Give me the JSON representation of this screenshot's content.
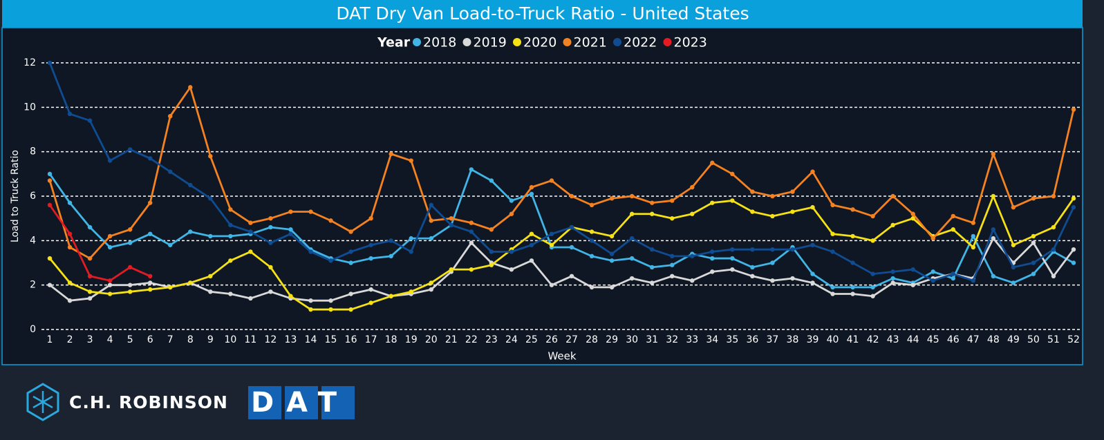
{
  "chart_data": {
    "type": "line",
    "title": "DAT Dry Van Load-to-Truck Ratio - United States",
    "legend_title": "Year",
    "x_label": "Week",
    "y_label": "Load to Truck Ratio",
    "x": [
      1,
      2,
      3,
      4,
      5,
      6,
      7,
      8,
      9,
      10,
      11,
      12,
      13,
      14,
      15,
      16,
      17,
      18,
      19,
      20,
      21,
      22,
      23,
      24,
      25,
      26,
      27,
      28,
      29,
      30,
      31,
      32,
      33,
      34,
      35,
      36,
      37,
      38,
      39,
      40,
      41,
      42,
      43,
      44,
      45,
      46,
      47,
      48,
      49,
      50,
      51,
      52
    ],
    "xlim": [
      1,
      52
    ],
    "ylim": [
      0,
      12
    ],
    "yticks": [
      0,
      2,
      4,
      6,
      8,
      10,
      12
    ],
    "grid": true,
    "legend": "top",
    "series": [
      {
        "name": "2018",
        "color": "#41b6e6",
        "values": [
          7.0,
          5.7,
          4.6,
          3.7,
          3.9,
          4.3,
          3.8,
          4.4,
          4.2,
          4.2,
          4.3,
          4.6,
          4.5,
          3.6,
          3.2,
          3.0,
          3.2,
          3.3,
          4.1,
          4.1,
          4.7,
          7.2,
          6.7,
          5.8,
          6.1,
          3.7,
          3.7,
          3.3,
          3.1,
          3.2,
          2.8,
          2.9,
          3.4,
          3.2,
          3.2,
          2.8,
          3.0,
          3.7,
          2.5,
          1.9,
          1.9,
          1.9,
          2.3,
          2.1,
          2.6,
          2.3,
          4.2,
          2.4,
          2.1,
          2.5,
          3.5,
          3.0
        ]
      },
      {
        "name": "2019",
        "color": "#d9d9d9",
        "values": [
          2.0,
          1.3,
          1.4,
          2.0,
          2.0,
          2.1,
          1.9,
          2.1,
          1.7,
          1.6,
          1.4,
          1.7,
          1.4,
          1.3,
          1.3,
          1.6,
          1.8,
          1.5,
          1.6,
          1.8,
          2.6,
          3.9,
          3.0,
          2.7,
          3.1,
          2.0,
          2.4,
          1.9,
          1.9,
          2.3,
          2.1,
          2.4,
          2.2,
          2.6,
          2.7,
          2.4,
          2.2,
          2.3,
          2.1,
          1.6,
          1.6,
          1.5,
          2.1,
          2.0,
          2.3,
          2.5,
          2.3,
          4.1,
          3.0,
          3.9,
          2.4,
          3.6
        ]
      },
      {
        "name": "2020",
        "color": "#f5e116",
        "values": [
          3.2,
          2.1,
          1.7,
          1.6,
          1.7,
          1.8,
          1.9,
          2.1,
          2.4,
          3.1,
          3.5,
          2.8,
          1.5,
          0.9,
          0.9,
          0.9,
          1.2,
          1.5,
          1.7,
          2.1,
          2.7,
          2.7,
          2.9,
          3.6,
          4.3,
          3.8,
          4.6,
          4.4,
          4.2,
          5.2,
          5.2,
          5.0,
          5.2,
          5.7,
          5.8,
          5.3,
          5.1,
          5.3,
          5.5,
          4.3,
          4.2,
          4.0,
          4.7,
          5.0,
          4.2,
          4.5,
          3.7,
          6.0,
          3.8,
          4.2,
          4.6,
          5.9
        ]
      },
      {
        "name": "2021",
        "color": "#f58220",
        "values": [
          6.7,
          3.7,
          3.2,
          4.2,
          4.5,
          5.7,
          9.6,
          10.9,
          7.8,
          5.4,
          4.8,
          5.0,
          5.3,
          5.3,
          4.9,
          4.4,
          5.0,
          7.9,
          7.6,
          4.9,
          5.0,
          4.8,
          4.5,
          5.2,
          6.4,
          6.7,
          6.0,
          5.6,
          5.9,
          6.0,
          5.7,
          5.8,
          6.4,
          7.5,
          7.0,
          6.2,
          6.0,
          6.2,
          7.1,
          5.6,
          5.4,
          5.1,
          6.0,
          5.2,
          4.1,
          5.1,
          4.8,
          7.9,
          5.5,
          5.9,
          6.0,
          9.9
        ]
      },
      {
        "name": "2022",
        "color": "#0f4c91",
        "values": [
          12.0,
          9.7,
          9.4,
          7.6,
          8.1,
          7.7,
          7.1,
          6.5,
          5.9,
          4.7,
          4.4,
          3.9,
          4.3,
          3.5,
          3.1,
          3.5,
          3.8,
          4.0,
          3.5,
          5.6,
          4.7,
          4.4,
          3.5,
          3.5,
          3.8,
          4.3,
          4.6,
          4.0,
          3.4,
          4.1,
          3.6,
          3.3,
          3.3,
          3.5,
          3.6,
          3.6,
          3.6,
          3.6,
          3.8,
          3.5,
          3.0,
          2.5,
          2.6,
          2.7,
          2.2,
          2.5,
          2.2,
          4.5,
          2.8,
          3.0,
          3.6,
          5.5
        ]
      },
      {
        "name": "2023",
        "color": "#e31b23",
        "values": [
          5.6,
          4.3,
          2.4,
          2.2,
          2.8,
          2.4,
          null,
          null,
          null,
          null,
          null,
          null,
          null,
          null,
          null,
          null,
          null,
          null,
          null,
          null,
          null,
          null,
          null,
          null,
          null,
          null,
          null,
          null,
          null,
          null,
          null,
          null,
          null,
          null,
          null,
          null,
          null,
          null,
          null,
          null,
          null,
          null,
          null,
          null,
          null,
          null,
          null,
          null,
          null,
          null,
          null,
          null
        ]
      }
    ]
  },
  "footer": {
    "logo_1": "C.H. ROBINSON",
    "logo_2": "DAT"
  }
}
